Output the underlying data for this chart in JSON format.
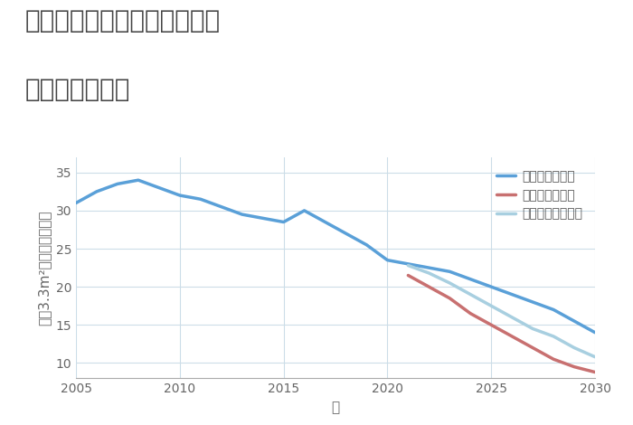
{
  "title_line1": "愛知県稲沢市平和町下三宅の",
  "title_line2": "土地の価格推移",
  "xlabel": "年",
  "ylabel": "坪（3.3m²）単価（万円）",
  "background_color": "#ffffff",
  "plot_bg_color": "#ffffff",
  "grid_color": "#ccdde8",
  "xlim": [
    2005,
    2030
  ],
  "ylim": [
    8,
    37
  ],
  "yticks": [
    10,
    15,
    20,
    25,
    30,
    35
  ],
  "xticks": [
    2005,
    2010,
    2015,
    2020,
    2025,
    2030
  ],
  "series": {
    "good": {
      "label": "グッドシナリオ",
      "color": "#5aa0d8",
      "linewidth": 2.5,
      "x": [
        2005,
        2006,
        2007,
        2008,
        2009,
        2010,
        2011,
        2012,
        2013,
        2014,
        2015,
        2016,
        2017,
        2018,
        2019,
        2020,
        2021,
        2022,
        2023,
        2024,
        2025,
        2026,
        2027,
        2028,
        2029,
        2030
      ],
      "y": [
        31.0,
        32.5,
        33.5,
        34.0,
        33.0,
        32.0,
        31.5,
        30.5,
        29.5,
        29.0,
        28.5,
        30.0,
        28.5,
        27.0,
        25.5,
        23.5,
        23.0,
        22.5,
        22.0,
        21.0,
        20.0,
        19.0,
        18.0,
        17.0,
        15.5,
        14.0
      ]
    },
    "bad": {
      "label": "バッドシナリオ",
      "color": "#c87070",
      "linewidth": 2.5,
      "x": [
        2021,
        2022,
        2023,
        2024,
        2025,
        2026,
        2027,
        2028,
        2029,
        2030
      ],
      "y": [
        21.5,
        20.0,
        18.5,
        16.5,
        15.0,
        13.5,
        12.0,
        10.5,
        9.5,
        8.8
      ]
    },
    "normal": {
      "label": "ノーマルシナリオ",
      "color": "#a8cfe0",
      "linewidth": 2.5,
      "x": [
        2021,
        2022,
        2023,
        2024,
        2025,
        2026,
        2027,
        2028,
        2029,
        2030
      ],
      "y": [
        22.8,
        21.8,
        20.5,
        19.0,
        17.5,
        16.0,
        14.5,
        13.5,
        12.0,
        10.8
      ]
    }
  },
  "legend_fontsize": 10,
  "title_fontsize": 20,
  "axis_label_fontsize": 11,
  "tick_fontsize": 10
}
